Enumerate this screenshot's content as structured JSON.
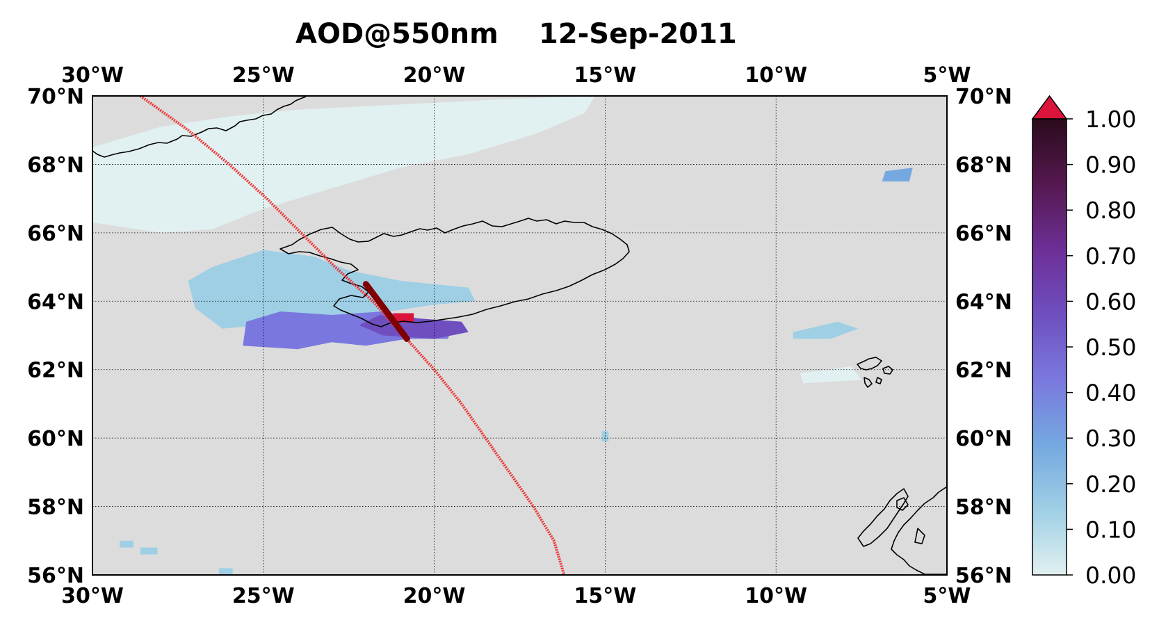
{
  "figure": {
    "title_left": "AOD@550nm",
    "title_right": "12-Sep-2011"
  },
  "map": {
    "background_color": "#dcdcdc",
    "lon_range": [
      -30,
      -5
    ],
    "lat_range": [
      56,
      70
    ],
    "grid": true,
    "lon_ticks": [
      {
        "value": -30,
        "label": "30°W"
      },
      {
        "value": -25,
        "label": "25°W"
      },
      {
        "value": -20,
        "label": "20°W"
      },
      {
        "value": -15,
        "label": "15°W"
      },
      {
        "value": -10,
        "label": "10°W"
      },
      {
        "value": -5,
        "label": "5°W"
      }
    ],
    "lat_ticks": [
      {
        "value": 70,
        "label": "70°N"
      },
      {
        "value": 68,
        "label": "68°N"
      },
      {
        "value": 66,
        "label": "66°N"
      },
      {
        "value": 64,
        "label": "64°N"
      },
      {
        "value": 62,
        "label": "62°N"
      },
      {
        "value": 60,
        "label": "60°N"
      },
      {
        "value": 58,
        "label": "58°N"
      },
      {
        "value": 56,
        "label": "56°N"
      }
    ],
    "aod_regions": [
      {
        "name": "greenland-strait",
        "aod": 0.08,
        "polygon": [
          [
            -30,
            68.5
          ],
          [
            -28,
            69.1
          ],
          [
            -26,
            69.4
          ],
          [
            -24,
            69.6
          ],
          [
            -22,
            69.7
          ],
          [
            -20,
            69.8
          ],
          [
            -18,
            69.9
          ],
          [
            -15.3,
            70
          ],
          [
            -15.6,
            69.5
          ],
          [
            -17,
            68.9
          ],
          [
            -19,
            68.3
          ],
          [
            -21,
            67.9
          ],
          [
            -23,
            67.3
          ],
          [
            -25,
            66.7
          ],
          [
            -26.5,
            66.1
          ],
          [
            -28,
            66
          ],
          [
            -30,
            66.3
          ]
        ]
      },
      {
        "name": "iceland-west-plume",
        "aod": 0.18,
        "polygon": [
          [
            -26.5,
            65.0
          ],
          [
            -25,
            65.5
          ],
          [
            -23.5,
            65.3
          ],
          [
            -22.5,
            64.9
          ],
          [
            -21,
            64.6
          ],
          [
            -19,
            64.4
          ],
          [
            -18.8,
            64.0
          ],
          [
            -20,
            63.9
          ],
          [
            -22,
            63.6
          ],
          [
            -24,
            63.4
          ],
          [
            -26.2,
            63.2
          ],
          [
            -27,
            63.8
          ],
          [
            -27.2,
            64.6
          ]
        ]
      },
      {
        "name": "iceland-south-plume",
        "aod": 0.38,
        "polygon": [
          [
            -25.5,
            63.4
          ],
          [
            -24.5,
            63.7
          ],
          [
            -23,
            63.6
          ],
          [
            -21.5,
            63.7
          ],
          [
            -20.5,
            63.5
          ],
          [
            -19.5,
            63.2
          ],
          [
            -19.6,
            62.9
          ],
          [
            -20.8,
            62.9
          ],
          [
            -22,
            62.7
          ],
          [
            -23,
            62.8
          ],
          [
            -24,
            62.6
          ],
          [
            -25.6,
            62.7
          ]
        ]
      },
      {
        "name": "iceland-core-plume",
        "aod": 0.62,
        "polygon": [
          [
            -21.6,
            63.6
          ],
          [
            -20.5,
            63.5
          ],
          [
            -19.2,
            63.4
          ],
          [
            -19.0,
            63.1
          ],
          [
            -20.0,
            62.9
          ],
          [
            -21.5,
            63.0
          ],
          [
            -22.2,
            63.3
          ]
        ]
      },
      {
        "name": "north-patch",
        "aod": 0.25,
        "polygon": [
          [
            -6.8,
            67.8
          ],
          [
            -6.0,
            67.9
          ],
          [
            -6.1,
            67.5
          ],
          [
            -6.9,
            67.5
          ]
        ]
      },
      {
        "name": "faroe-west-patch",
        "aod": 0.2,
        "polygon": [
          [
            -9.5,
            63.1
          ],
          [
            -8.2,
            63.4
          ],
          [
            -7.6,
            63.2
          ],
          [
            -8.4,
            62.9
          ],
          [
            -9.5,
            62.9
          ]
        ]
      },
      {
        "name": "south-faroe-patch",
        "aod": 0.12,
        "polygon": [
          [
            -9.3,
            61.9
          ],
          [
            -8.5,
            62.0
          ],
          [
            -7.8,
            62.1
          ],
          [
            -7.5,
            61.7
          ],
          [
            -9.2,
            61.6
          ]
        ]
      },
      {
        "name": "small-patch-15w",
        "aod": 0.22,
        "polygon": [
          [
            -15.1,
            60.2
          ],
          [
            -14.9,
            60.2
          ],
          [
            -14.9,
            59.9
          ],
          [
            -15.1,
            59.9
          ]
        ]
      },
      {
        "name": "sw-patch-1",
        "aod": 0.2,
        "polygon": [
          [
            -29.2,
            57.0
          ],
          [
            -28.8,
            57.0
          ],
          [
            -28.8,
            56.8
          ],
          [
            -29.2,
            56.8
          ]
        ]
      },
      {
        "name": "sw-patch-2",
        "aod": 0.22,
        "polygon": [
          [
            -28.6,
            56.8
          ],
          [
            -28.1,
            56.8
          ],
          [
            -28.1,
            56.6
          ],
          [
            -28.6,
            56.6
          ]
        ]
      },
      {
        "name": "sw-patch-3",
        "aod": 0.2,
        "polygon": [
          [
            -26.3,
            56.2
          ],
          [
            -25.9,
            56.2
          ],
          [
            -25.9,
            56.0
          ],
          [
            -26.3,
            56.0
          ]
        ]
      }
    ],
    "aod_peak": {
      "aod": 1.2,
      "polygon": [
        [
          -21.2,
          63.65
        ],
        [
          -20.6,
          63.65
        ],
        [
          -20.6,
          63.38
        ],
        [
          -21.2,
          63.38
        ]
      ]
    },
    "track": {
      "color": "#ee3333",
      "thickened_color": "#800000",
      "points": [
        [
          -28.6,
          70.0
        ],
        [
          -27.2,
          69.0
        ],
        [
          -26.0,
          68.0
        ],
        [
          -24.9,
          67.0
        ],
        [
          -23.9,
          66.0
        ],
        [
          -22.9,
          65.0
        ],
        [
          -21.8,
          64.0
        ],
        [
          -20.9,
          63.0
        ],
        [
          -20.0,
          62.0
        ],
        [
          -19.2,
          61.0
        ],
        [
          -18.5,
          60.0
        ],
        [
          -17.8,
          59.0
        ],
        [
          -17.1,
          58.0
        ],
        [
          -16.5,
          57.0
        ],
        [
          -16.2,
          56.0
        ]
      ],
      "thick_segment": [
        [
          -22.0,
          64.5
        ],
        [
          -20.8,
          62.9
        ]
      ]
    }
  },
  "colorbar": {
    "min": 0.0,
    "max": 1.0,
    "extend": "max",
    "over_color": "#dc143c",
    "colors": [
      "#e1f0f0",
      "#9fcfe5",
      "#75a8e0",
      "#7a78de",
      "#6f4fc0",
      "#6d2f96",
      "#55184f",
      "#2b0b1d"
    ],
    "ticks": [
      {
        "value": 0.0,
        "label": "0.00"
      },
      {
        "value": 0.1,
        "label": "0.10"
      },
      {
        "value": 0.2,
        "label": "0.20"
      },
      {
        "value": 0.3,
        "label": "0.30"
      },
      {
        "value": 0.4,
        "label": "0.40"
      },
      {
        "value": 0.5,
        "label": "0.50"
      },
      {
        "value": 0.6,
        "label": "0.60"
      },
      {
        "value": 0.7,
        "label": "0.70"
      },
      {
        "value": 0.8,
        "label": "0.80"
      },
      {
        "value": 0.9,
        "label": "0.90"
      },
      {
        "value": 1.0,
        "label": "1.00"
      }
    ]
  }
}
